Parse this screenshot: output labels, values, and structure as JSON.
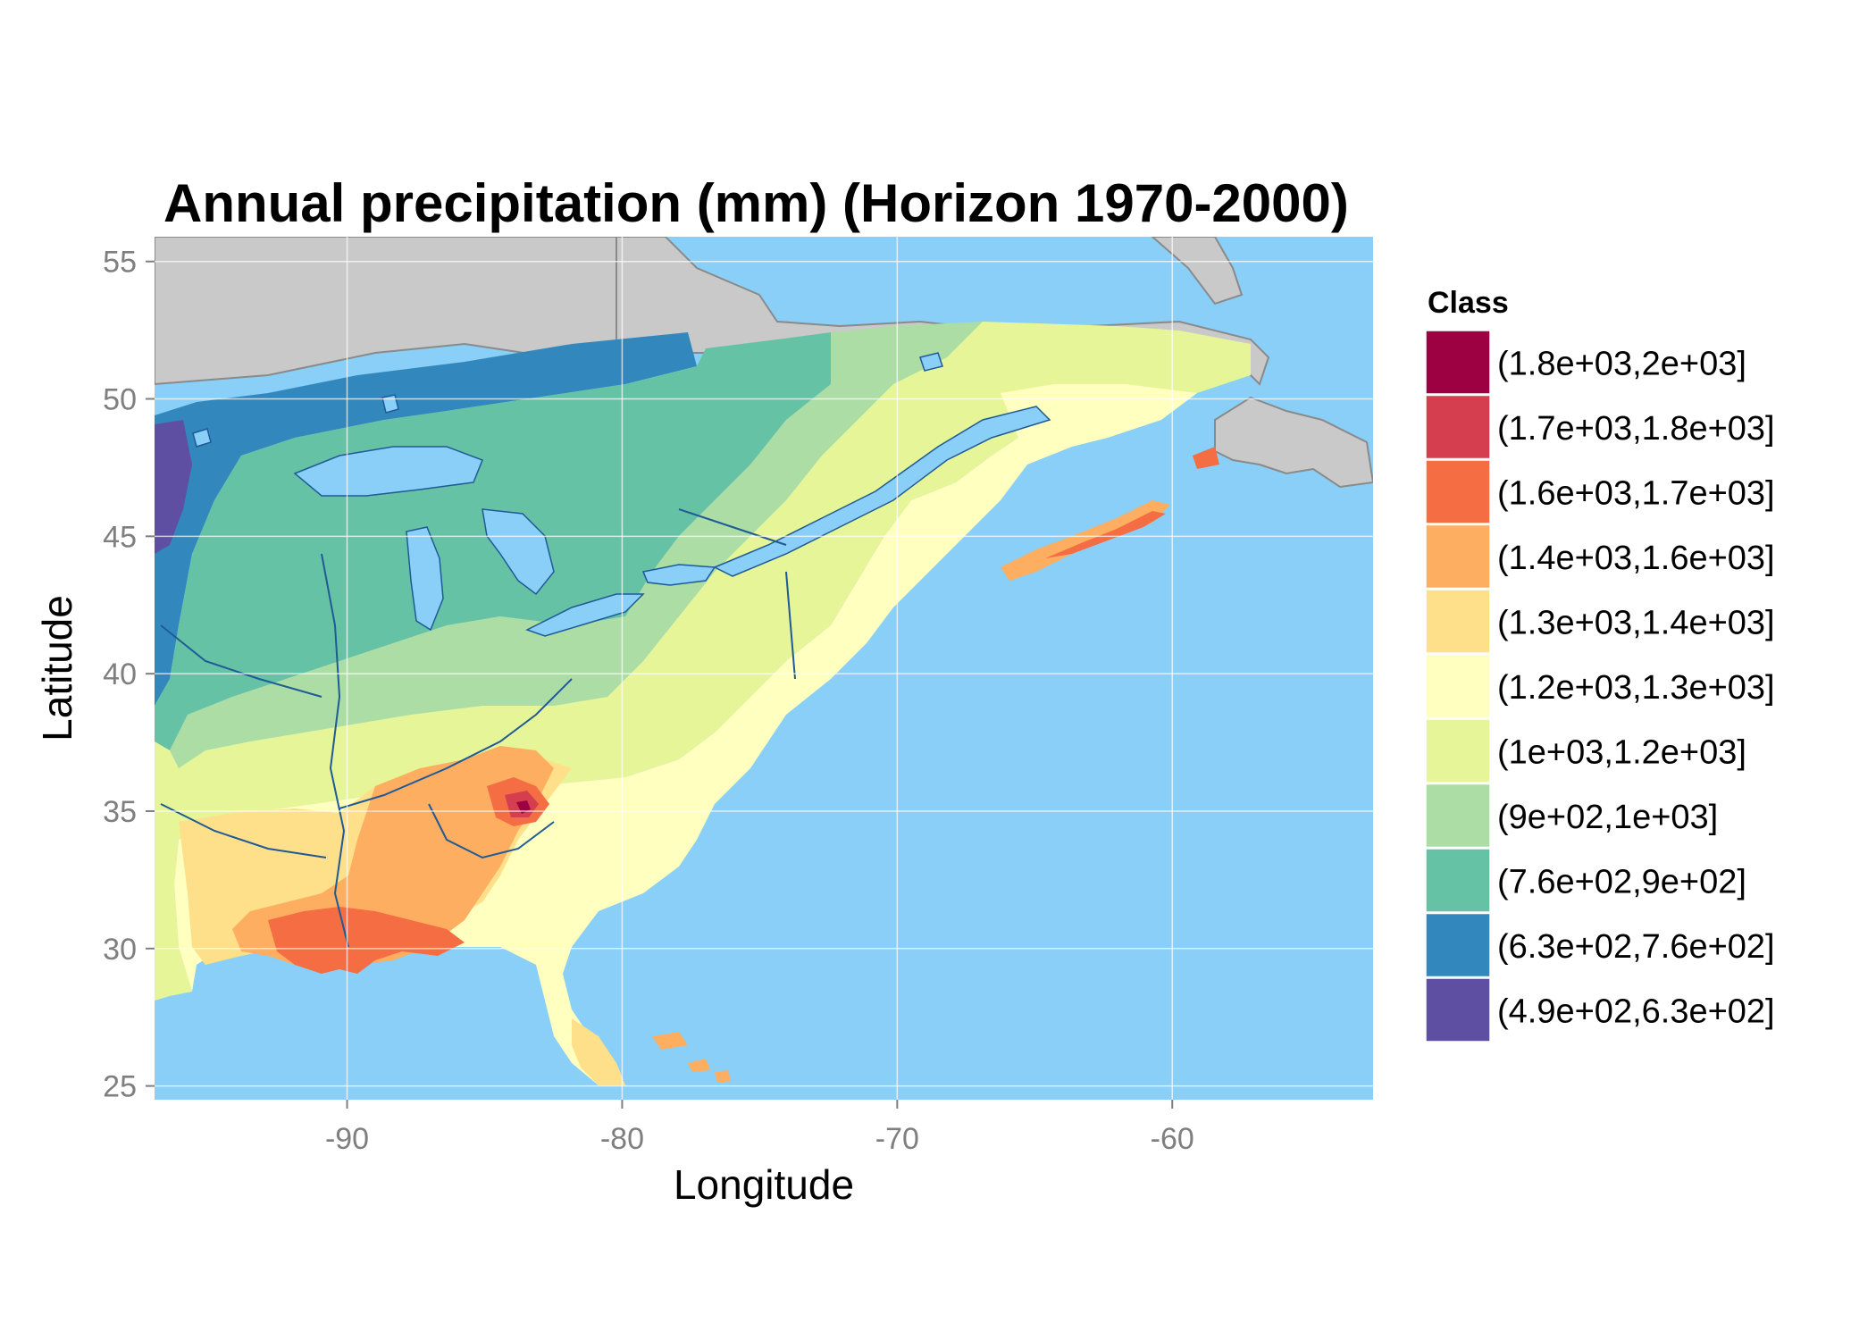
{
  "map": {
    "title": "Annual precipitation (mm) (Horizon 1970-2000)",
    "xlabel": "Longitude",
    "ylabel": "Latitude",
    "xlim": [
      -97,
      -52.7
    ],
    "ylim": [
      24.5,
      55.9
    ],
    "x_ticks": [
      -90,
      -80,
      -70,
      -60
    ],
    "y_ticks": [
      25,
      30,
      35,
      40,
      45,
      50,
      55
    ],
    "x_tick_labels": [
      "-90",
      "-80",
      "-70",
      "-60"
    ],
    "y_tick_labels": [
      "25",
      "30",
      "35",
      "40",
      "45",
      "50",
      "55"
    ],
    "colors": {
      "ocean": "#89cff8",
      "land_outside": "#c9c9c9",
      "water_lines": "#1f5a96",
      "grid": "#ffffff"
    },
    "legend": {
      "title": "Class",
      "classes": [
        {
          "label": "(1.8e+03,2e+03]",
          "color": "#9e0142"
        },
        {
          "label": "(1.7e+03,1.8e+03]",
          "color": "#d53e4f"
        },
        {
          "label": "(1.6e+03,1.7e+03]",
          "color": "#f46d43"
        },
        {
          "label": "(1.4e+03,1.6e+03]",
          "color": "#fdae61"
        },
        {
          "label": "(1.3e+03,1.4e+03]",
          "color": "#fee08b"
        },
        {
          "label": "(1.2e+03,1.3e+03]",
          "color": "#ffffbf"
        },
        {
          "label": "(1e+03,1.2e+03]",
          "color": "#e6f598"
        },
        {
          "label": "(9e+02,1e+03]",
          "color": "#abdda4"
        },
        {
          "label": "(7.6e+02,9e+02]",
          "color": "#66c2a5"
        },
        {
          "label": "(6.3e+02,7.6e+02]",
          "color": "#3288bd"
        },
        {
          "label": "(4.9e+02,6.3e+02]",
          "color": "#5e4fa2"
        }
      ]
    }
  }
}
